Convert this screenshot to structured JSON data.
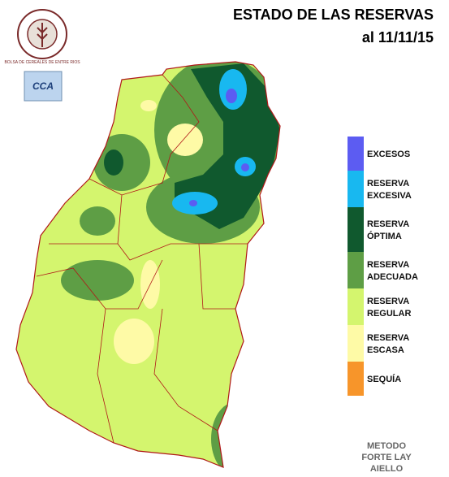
{
  "header": {
    "title": "ESTADO DE LAS RESERVAS",
    "date": "al 11/11/15"
  },
  "logos": {
    "bolsa": "BOLSA DE CEREALES DE ENTRE RIOS",
    "cca": "CCA"
  },
  "legend": [
    {
      "lines": [
        "EXCESOS"
      ],
      "color": "#5c5cf2"
    },
    {
      "lines": [
        "RESERVA",
        "EXCESIVA"
      ],
      "color": "#18b8f0"
    },
    {
      "lines": [
        "RESERVA",
        "ÓPTIMA"
      ],
      "color": "#10592e"
    },
    {
      "lines": [
        "RESERVA",
        "ADECUADA"
      ],
      "color": "#5e9e45"
    },
    {
      "lines": [
        "RESERVA",
        "REGULAR"
      ],
      "color": "#d4f56e"
    },
    {
      "lines": [
        "RESERVA",
        "ESCASA"
      ],
      "color": "#fefaa6"
    },
    {
      "lines": [
        "SEQUÍA"
      ],
      "color": "#f7952a"
    }
  ],
  "footer": [
    "METODO",
    "FORTE LAY",
    "AIELLO"
  ]
}
